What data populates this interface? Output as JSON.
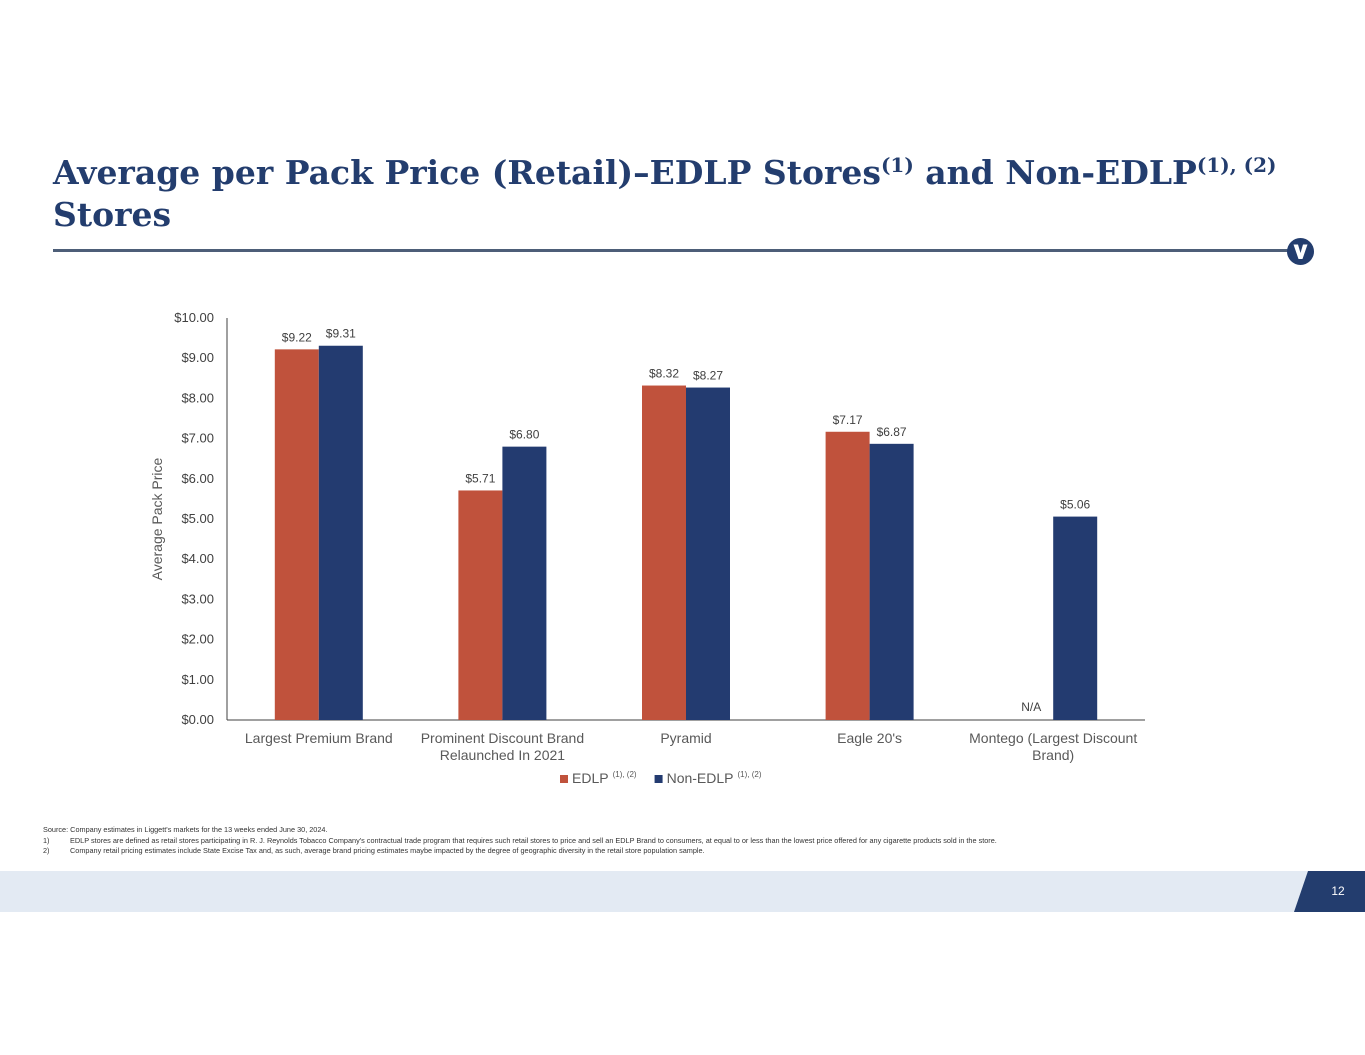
{
  "header": {
    "title_part1": "Average per Pack Price (Retail)–EDLP Stores",
    "title_sup1": "(1)",
    "title_part2": " and Non-EDLP",
    "title_sup2": "(1), (2)",
    "title_part3": " Stores"
  },
  "logo": {
    "icon": "v-logo-icon",
    "color": "#233d6e"
  },
  "chart_data": {
    "type": "bar",
    "title": "",
    "xlabel": "",
    "ylabel": "Average Pack Price",
    "ylim": [
      0,
      10
    ],
    "yticks": [
      "$0.00",
      "$1.00",
      "$2.00",
      "$3.00",
      "$4.00",
      "$5.00",
      "$6.00",
      "$7.00",
      "$8.00",
      "$9.00",
      "$10.00"
    ],
    "categories": [
      [
        "Largest Premium Brand"
      ],
      [
        "Prominent Discount Brand",
        "Relaunched In 2021"
      ],
      [
        "Pyramid"
      ],
      [
        "Eagle 20's"
      ],
      [
        "Montego (Largest Discount",
        "Brand)"
      ]
    ],
    "series": [
      {
        "name": "EDLP",
        "legend_sup": "(1), (2)",
        "color": "#c0523c",
        "values": [
          9.22,
          5.71,
          8.32,
          7.17,
          null
        ],
        "labels": [
          "$9.22",
          "$5.71",
          "$8.32",
          "$7.17",
          "N/A"
        ]
      },
      {
        "name": "Non-EDLP",
        "legend_sup": "(1), (2)",
        "color": "#233b70",
        "values": [
          9.31,
          6.8,
          8.27,
          6.87,
          5.06
        ],
        "labels": [
          "$9.31",
          "$6.80",
          "$8.27",
          "$6.87",
          "$5.06"
        ]
      }
    ],
    "legend_position": "bottom",
    "grid": false
  },
  "footnotes": {
    "source": "Source: Company estimates in Liggett's markets for the 13 weeks ended June 30, 2024.",
    "items": [
      {
        "num": "1)",
        "text": "EDLP stores are defined as retail stores participating in R. J. Reynolds Tobacco Company's contractual trade program that requires such retail stores to price and sell an EDLP Brand to consumers, at equal to or less than the lowest price offered for any cigarette products sold in the store."
      },
      {
        "num": "2)",
        "text": "Company retail pricing estimates include State Excise Tax and, as such, average brand pricing estimates maybe impacted by the degree of geographic diversity in the retail store population sample."
      }
    ]
  },
  "footer": {
    "page_number": "12",
    "tab_color": "#233d6e",
    "band_color": "#e3eaf3"
  }
}
